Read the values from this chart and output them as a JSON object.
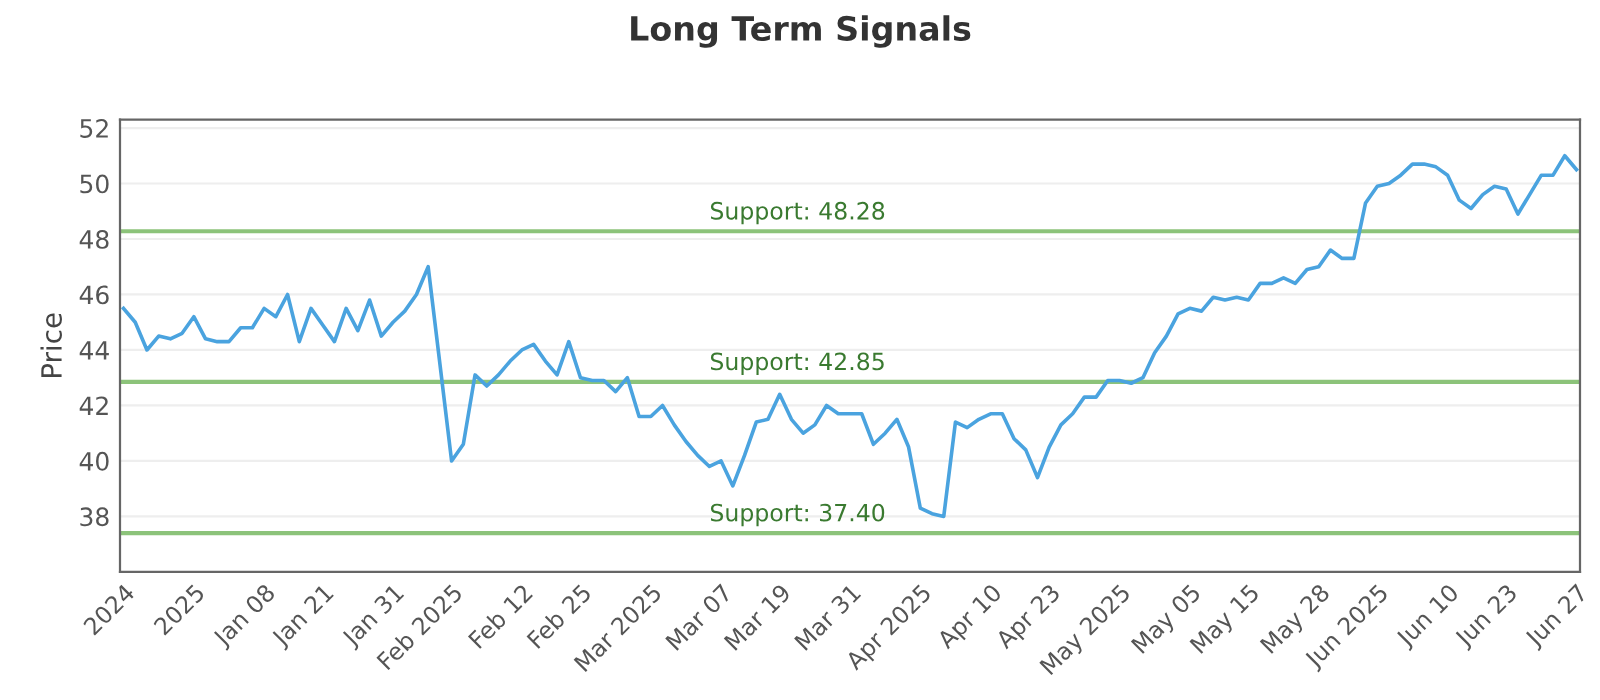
{
  "chart_data": {
    "type": "line",
    "title": "Long Term Signals",
    "ylabel": "Price",
    "categories": [
      "2024",
      null,
      null,
      null,
      null,
      null,
      "2025",
      null,
      null,
      null,
      null,
      null,
      "Jan 08",
      null,
      null,
      null,
      null,
      "Jan 21",
      null,
      null,
      null,
      null,
      null,
      "Jan 31",
      null,
      null,
      null,
      null,
      "Feb 2025",
      null,
      null,
      null,
      null,
      null,
      "Feb 12",
      null,
      null,
      null,
      null,
      "Feb 25",
      null,
      null,
      null,
      null,
      null,
      "Mar 2025",
      null,
      null,
      null,
      null,
      null,
      "Mar 07",
      null,
      null,
      null,
      null,
      "Mar 19",
      null,
      null,
      null,
      null,
      null,
      "Mar 31",
      null,
      null,
      null,
      null,
      null,
      "Apr 2025",
      null,
      null,
      null,
      null,
      null,
      "Apr 10",
      null,
      null,
      null,
      null,
      "Apr 23",
      null,
      null,
      null,
      null,
      null,
      "May 2025",
      null,
      null,
      null,
      null,
      null,
      "May 05",
      null,
      null,
      null,
      null,
      "May 15",
      null,
      null,
      null,
      null,
      null,
      "May 28",
      null,
      null,
      null,
      null,
      "Jun 2025",
      null,
      null,
      null,
      null,
      null,
      "Jun 10",
      null,
      null,
      null,
      null,
      "Jun 23",
      null,
      null,
      null,
      null,
      null,
      "Jun 27"
    ],
    "series": [
      {
        "color": "#4aa3df",
        "values": [
          45.5,
          45.0,
          44.0,
          44.5,
          44.4,
          44.6,
          45.2,
          44.4,
          44.3,
          44.3,
          44.8,
          44.8,
          45.5,
          45.2,
          46.0,
          44.3,
          45.5,
          44.9,
          44.3,
          45.5,
          44.7,
          45.8,
          44.5,
          45.0,
          45.4,
          46.0,
          47.0,
          43.5,
          40.0,
          40.6,
          43.1,
          42.7,
          43.1,
          43.6,
          44.0,
          44.2,
          43.6,
          43.1,
          44.3,
          43.0,
          42.9,
          42.9,
          42.5,
          43.0,
          41.6,
          41.6,
          42.0,
          41.3,
          40.7,
          40.2,
          39.8,
          40.0,
          39.1,
          40.2,
          41.4,
          41.5,
          42.4,
          41.5,
          41.0,
          41.3,
          42.0,
          41.7,
          41.7,
          41.7,
          40.6,
          41.0,
          41.5,
          40.5,
          38.3,
          38.1,
          38.0,
          41.4,
          41.2,
          41.5,
          41.7,
          41.7,
          40.8,
          40.4,
          39.4,
          40.5,
          41.3,
          41.7,
          42.3,
          42.3,
          42.9,
          42.9,
          42.8,
          43.0,
          43.9,
          44.5,
          45.3,
          45.5,
          45.4,
          45.9,
          45.8,
          45.9,
          45.8,
          46.4,
          46.4,
          46.6,
          46.4,
          46.9,
          47.0,
          47.6,
          47.3,
          47.3,
          49.3,
          49.9,
          50.0,
          50.3,
          50.7,
          50.7,
          50.6,
          50.3,
          49.4,
          49.1,
          49.6,
          49.9,
          49.8,
          48.9,
          49.6,
          50.3,
          50.3,
          51.0,
          50.5
        ]
      }
    ],
    "ylim": [
      36,
      52.3
    ],
    "yticks": [
      38,
      40,
      42,
      44,
      46,
      48,
      50,
      52
    ],
    "grid": "y",
    "marker": "none",
    "line_style": "solid",
    "ref_lines": [
      {
        "axis": "y",
        "value": 48.28,
        "label": "Support: 48.28",
        "color": "#8cc37a"
      },
      {
        "axis": "y",
        "value": 42.85,
        "label": "Support: 42.85",
        "color": "#8cc37a"
      },
      {
        "axis": "y",
        "value": 37.4,
        "label": "Support: 37.40",
        "color": "#8cc37a"
      }
    ]
  }
}
